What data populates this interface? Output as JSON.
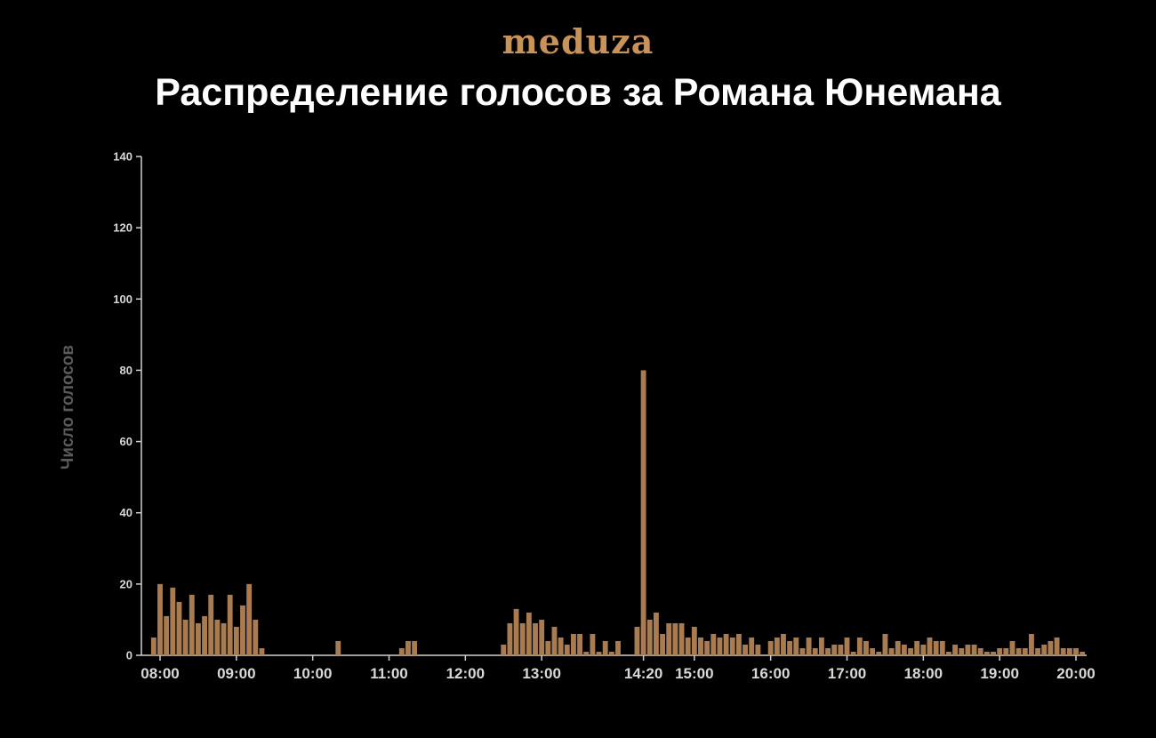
{
  "logo": "meduza",
  "chart_data": {
    "type": "bar",
    "title": "Распределение голосов за Романа Юнемана",
    "ylabel": "Число голосов",
    "xlabel": "",
    "ylim": [
      0,
      140
    ],
    "yticks": [
      0,
      20,
      40,
      60,
      80,
      100,
      120,
      140
    ],
    "xticks": [
      "08:00",
      "09:00",
      "10:00",
      "11:00",
      "12:00",
      "13:00",
      "14:20",
      "15:00",
      "16:00",
      "17:00",
      "18:00",
      "19:00",
      "20:00"
    ],
    "bar_color": "#a87b50",
    "bar_interval_minutes": 5,
    "bars": [
      {
        "t": "07:55",
        "v": 5
      },
      {
        "t": "08:00",
        "v": 20
      },
      {
        "t": "08:05",
        "v": 11
      },
      {
        "t": "08:10",
        "v": 19
      },
      {
        "t": "08:15",
        "v": 15
      },
      {
        "t": "08:20",
        "v": 10
      },
      {
        "t": "08:25",
        "v": 17
      },
      {
        "t": "08:30",
        "v": 9
      },
      {
        "t": "08:35",
        "v": 11
      },
      {
        "t": "08:40",
        "v": 17
      },
      {
        "t": "08:45",
        "v": 10
      },
      {
        "t": "08:50",
        "v": 9
      },
      {
        "t": "08:55",
        "v": 17
      },
      {
        "t": "09:00",
        "v": 8
      },
      {
        "t": "09:05",
        "v": 14
      },
      {
        "t": "09:10",
        "v": 20
      },
      {
        "t": "09:15",
        "v": 10
      },
      {
        "t": "09:20",
        "v": 2
      },
      {
        "t": "10:20",
        "v": 4
      },
      {
        "t": "11:10",
        "v": 2
      },
      {
        "t": "11:15",
        "v": 4
      },
      {
        "t": "11:20",
        "v": 4
      },
      {
        "t": "12:30",
        "v": 3
      },
      {
        "t": "12:35",
        "v": 9
      },
      {
        "t": "12:40",
        "v": 13
      },
      {
        "t": "12:45",
        "v": 9
      },
      {
        "t": "12:50",
        "v": 12
      },
      {
        "t": "12:55",
        "v": 9
      },
      {
        "t": "13:00",
        "v": 10
      },
      {
        "t": "13:05",
        "v": 4
      },
      {
        "t": "13:10",
        "v": 8
      },
      {
        "t": "13:15",
        "v": 5
      },
      {
        "t": "13:20",
        "v": 3
      },
      {
        "t": "13:25",
        "v": 6
      },
      {
        "t": "13:30",
        "v": 6
      },
      {
        "t": "13:35",
        "v": 1
      },
      {
        "t": "13:40",
        "v": 6
      },
      {
        "t": "13:45",
        "v": 1
      },
      {
        "t": "13:50",
        "v": 4
      },
      {
        "t": "13:55",
        "v": 1
      },
      {
        "t": "14:00",
        "v": 4
      },
      {
        "t": "14:15",
        "v": 8
      },
      {
        "t": "14:20",
        "v": 80
      },
      {
        "t": "14:25",
        "v": 10
      },
      {
        "t": "14:30",
        "v": 12
      },
      {
        "t": "14:35",
        "v": 6
      },
      {
        "t": "14:40",
        "v": 9
      },
      {
        "t": "14:45",
        "v": 9
      },
      {
        "t": "14:50",
        "v": 9
      },
      {
        "t": "14:55",
        "v": 5
      },
      {
        "t": "15:00",
        "v": 8
      },
      {
        "t": "15:05",
        "v": 5
      },
      {
        "t": "15:10",
        "v": 4
      },
      {
        "t": "15:15",
        "v": 6
      },
      {
        "t": "15:20",
        "v": 5
      },
      {
        "t": "15:25",
        "v": 6
      },
      {
        "t": "15:30",
        "v": 5
      },
      {
        "t": "15:35",
        "v": 6
      },
      {
        "t": "15:40",
        "v": 3
      },
      {
        "t": "15:45",
        "v": 5
      },
      {
        "t": "15:50",
        "v": 3
      },
      {
        "t": "16:00",
        "v": 4
      },
      {
        "t": "16:05",
        "v": 5
      },
      {
        "t": "16:10",
        "v": 6
      },
      {
        "t": "16:15",
        "v": 4
      },
      {
        "t": "16:20",
        "v": 5
      },
      {
        "t": "16:25",
        "v": 2
      },
      {
        "t": "16:30",
        "v": 5
      },
      {
        "t": "16:35",
        "v": 2
      },
      {
        "t": "16:40",
        "v": 5
      },
      {
        "t": "16:45",
        "v": 2
      },
      {
        "t": "16:50",
        "v": 3
      },
      {
        "t": "16:55",
        "v": 3
      },
      {
        "t": "17:00",
        "v": 5
      },
      {
        "t": "17:05",
        "v": 1
      },
      {
        "t": "17:10",
        "v": 5
      },
      {
        "t": "17:15",
        "v": 4
      },
      {
        "t": "17:20",
        "v": 2
      },
      {
        "t": "17:25",
        "v": 1
      },
      {
        "t": "17:30",
        "v": 6
      },
      {
        "t": "17:35",
        "v": 2
      },
      {
        "t": "17:40",
        "v": 4
      },
      {
        "t": "17:45",
        "v": 3
      },
      {
        "t": "17:50",
        "v": 2
      },
      {
        "t": "17:55",
        "v": 4
      },
      {
        "t": "18:00",
        "v": 3
      },
      {
        "t": "18:05",
        "v": 5
      },
      {
        "t": "18:10",
        "v": 4
      },
      {
        "t": "18:15",
        "v": 4
      },
      {
        "t": "18:20",
        "v": 1
      },
      {
        "t": "18:25",
        "v": 3
      },
      {
        "t": "18:30",
        "v": 2
      },
      {
        "t": "18:35",
        "v": 3
      },
      {
        "t": "18:40",
        "v": 3
      },
      {
        "t": "18:45",
        "v": 2
      },
      {
        "t": "18:50",
        "v": 1
      },
      {
        "t": "18:55",
        "v": 1
      },
      {
        "t": "19:00",
        "v": 2
      },
      {
        "t": "19:05",
        "v": 2
      },
      {
        "t": "19:10",
        "v": 4
      },
      {
        "t": "19:15",
        "v": 2
      },
      {
        "t": "19:20",
        "v": 2
      },
      {
        "t": "19:25",
        "v": 6
      },
      {
        "t": "19:30",
        "v": 2
      },
      {
        "t": "19:35",
        "v": 3
      },
      {
        "t": "19:40",
        "v": 4
      },
      {
        "t": "19:45",
        "v": 5
      },
      {
        "t": "19:50",
        "v": 2
      },
      {
        "t": "19:55",
        "v": 2
      },
      {
        "t": "20:00",
        "v": 2
      },
      {
        "t": "20:05",
        "v": 1
      }
    ]
  }
}
